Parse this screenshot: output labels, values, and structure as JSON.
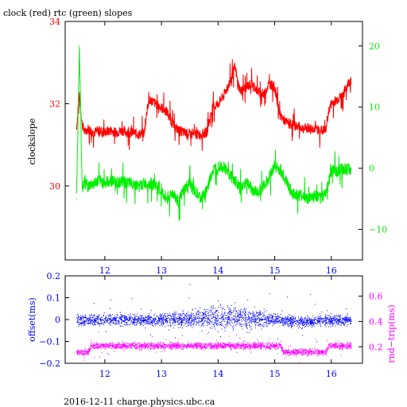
{
  "title": "clock (red) rtc (green) slopes",
  "footer": "2016-12-11 charge.physics.ubc.ca",
  "colors": {
    "clock": "#ff0000",
    "rtc": "#00ee00",
    "offset": "#0000ff",
    "rnd_trip": "#ff00ff",
    "axis": "#000000"
  },
  "chart_data": [
    {
      "type": "line",
      "ylabel": "clockslope",
      "xlim": [
        11.3,
        16.55
      ],
      "x_ticks": [
        12,
        13,
        14,
        15,
        16
      ],
      "x_tick_labels": [
        "12",
        "13",
        "14",
        "15",
        "16"
      ],
      "grid": false,
      "left_axis": {
        "ylim": [
          28.2,
          34.0
        ],
        "ticks": [
          30,
          32,
          34
        ],
        "tick_labels": [
          "30",
          "32",
          "34"
        ],
        "color": "#ff0000"
      },
      "right_axis": {
        "ylim": [
          -15,
          24
        ],
        "ticks": [
          -10,
          0,
          10,
          20
        ],
        "tick_labels": [
          "−10",
          "0",
          "10",
          "20"
        ],
        "color": "#00ee00"
      },
      "series": [
        {
          "axis": "left",
          "color": "#ff0000",
          "x": [
            11.5,
            11.55,
            11.6,
            11.65,
            11.7,
            11.8,
            11.9,
            12.0,
            12.1,
            12.2,
            12.3,
            12.4,
            12.5,
            12.6,
            12.7,
            12.75,
            12.8,
            12.9,
            13.0,
            13.1,
            13.2,
            13.3,
            13.4,
            13.5,
            13.6,
            13.7,
            13.8,
            13.9,
            14.0,
            14.1,
            14.2,
            14.25,
            14.3,
            14.35,
            14.4,
            14.5,
            14.6,
            14.7,
            14.8,
            14.9,
            15.0,
            15.05,
            15.1,
            15.2,
            15.3,
            15.4,
            15.5,
            15.6,
            15.7,
            15.8,
            15.9,
            15.95,
            16.0,
            16.1,
            16.2,
            16.3,
            16.35
          ],
          "values": [
            31.4,
            32.2,
            31.5,
            31.3,
            31.4,
            31.3,
            31.35,
            31.3,
            31.35,
            31.3,
            31.35,
            31.3,
            31.3,
            31.25,
            31.3,
            31.9,
            32.1,
            32.0,
            31.9,
            31.8,
            31.5,
            31.35,
            31.3,
            31.25,
            31.25,
            31.25,
            31.3,
            31.9,
            32.0,
            32.2,
            32.5,
            32.7,
            32.9,
            32.5,
            32.3,
            32.4,
            32.5,
            32.3,
            32.2,
            32.5,
            32.4,
            32.0,
            31.7,
            31.55,
            31.5,
            31.45,
            31.4,
            31.4,
            31.4,
            31.35,
            31.35,
            31.8,
            32.0,
            32.1,
            32.2,
            32.5,
            32.6
          ]
        },
        {
          "axis": "right",
          "color": "#00ee00",
          "x": [
            11.5,
            11.55,
            11.6,
            11.65,
            11.7,
            11.8,
            11.9,
            12.0,
            12.1,
            12.2,
            12.3,
            12.4,
            12.5,
            12.6,
            12.7,
            12.8,
            12.9,
            13.0,
            13.1,
            13.2,
            13.3,
            13.4,
            13.5,
            13.6,
            13.7,
            13.8,
            13.9,
            14.0,
            14.1,
            14.2,
            14.3,
            14.4,
            14.5,
            14.6,
            14.7,
            14.8,
            14.9,
            15.0,
            15.1,
            15.2,
            15.3,
            15.4,
            15.5,
            15.6,
            15.7,
            15.8,
            15.9,
            16.0,
            16.1,
            16.2,
            16.3,
            16.35
          ],
          "values": [
            -5,
            20,
            -3,
            -2,
            -3,
            -2.5,
            -2,
            -2.5,
            -2,
            -2.3,
            -2.2,
            -2.5,
            -2.5,
            -3,
            -2.5,
            -2.5,
            -2.8,
            -4,
            -5,
            -4,
            -5.5,
            -3.5,
            -2.5,
            -4,
            -5,
            -3.5,
            -0.5,
            0.5,
            0.3,
            -1,
            -2,
            -3.5,
            -2,
            -3.5,
            -4,
            -3,
            -1.5,
            0.5,
            -0.5,
            -2,
            -4,
            -4.5,
            -4.5,
            -5,
            -4.5,
            -5,
            -4,
            -0.5,
            -0.5,
            0,
            -0.2,
            0
          ]
        }
      ]
    },
    {
      "type": "scatter",
      "xlim": [
        11.3,
        16.55
      ],
      "x_ticks": [
        12,
        13,
        14,
        15,
        16
      ],
      "x_tick_labels": [
        "12",
        "13",
        "14",
        "15",
        "16"
      ],
      "grid": false,
      "left_axis": {
        "label": "offset(ms)",
        "ylim": [
          -0.2,
          0.2
        ],
        "ticks": [
          -0.2,
          -0.1,
          0,
          0.1,
          0.2
        ],
        "tick_labels": [
          "−0.2",
          "−0.1",
          "0",
          "0.1",
          "0.2"
        ],
        "color": "#0000ff"
      },
      "right_axis": {
        "label": "rnd−trip(ms)",
        "ylim": [
          0.07,
          0.76
        ],
        "ticks": [
          0.2,
          0.4,
          0.6
        ],
        "tick_labels": [
          "0.2",
          "0.4",
          "0.6"
        ],
        "color": "#ff00ff"
      },
      "series": [
        {
          "axis": "left",
          "color": "#0000ff",
          "x": [
            11.5,
            12.0,
            12.5,
            13.0,
            13.5,
            14.0,
            14.5,
            15.0,
            15.5,
            16.0,
            16.35
          ],
          "values": [
            0.0,
            0.0,
            0.0,
            0.0,
            0.005,
            0.01,
            0.01,
            0.0,
            -0.01,
            0.0,
            0.0
          ],
          "spread": [
            0.02,
            0.02,
            0.02,
            0.02,
            0.03,
            0.04,
            0.04,
            0.02,
            0.02,
            0.02,
            0.02
          ]
        },
        {
          "axis": "right",
          "color": "#ff00ff",
          "x": [
            11.5,
            11.7,
            11.75,
            12.0,
            12.5,
            13.0,
            13.5,
            14.0,
            14.5,
            15.0,
            15.1,
            15.15,
            15.5,
            15.9,
            15.95,
            16.35
          ],
          "values": [
            0.16,
            0.16,
            0.21,
            0.21,
            0.21,
            0.21,
            0.21,
            0.21,
            0.21,
            0.21,
            0.21,
            0.16,
            0.16,
            0.16,
            0.21,
            0.21
          ],
          "spread": [
            0.02,
            0.02,
            0.02,
            0.02,
            0.02,
            0.02,
            0.02,
            0.02,
            0.02,
            0.02,
            0.02,
            0.02,
            0.02,
            0.02,
            0.02,
            0.02
          ]
        }
      ]
    }
  ]
}
